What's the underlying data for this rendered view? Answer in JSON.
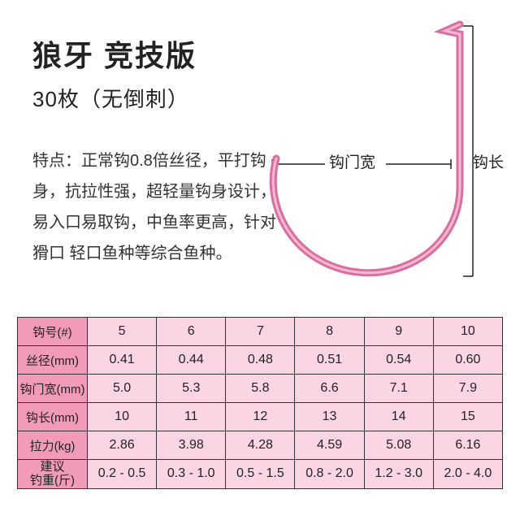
{
  "title": "狼牙 竞技版",
  "subtitle": "30枚（无倒刺）",
  "features_label": "特点：",
  "features_text": "正常钩0.8倍丝径，平打钩身，抗拉性强，超轻量钩身设计，易入口易取钩，中鱼率更高，针对猾口 轻口鱼种等综合鱼种。",
  "diagram": {
    "gate_width_label": "钩门宽",
    "hook_length_label": "钩长",
    "hook_color": "#d96fa0",
    "hook_highlight": "#f4b8d0",
    "bracket_color": "#222222"
  },
  "table": {
    "header_bg": "#f19ab9",
    "cell_bg": "#fbd5e3",
    "border_color": "#333333",
    "row_headers": [
      "钩号(#)",
      "丝径(mm)",
      "钩门宽(mm)",
      "钩长(mm)",
      "拉力(kg)",
      "建议\n钓重(斤)"
    ],
    "columns": [
      "5",
      "6",
      "7",
      "8",
      "9",
      "10"
    ],
    "rows": [
      [
        "0.41",
        "0.44",
        "0.48",
        "0.51",
        "0.54",
        "0.60"
      ],
      [
        "5.0",
        "5.3",
        "5.8",
        "6.6",
        "7.1",
        "7.9"
      ],
      [
        "10",
        "11",
        "12",
        "13",
        "14",
        "15"
      ],
      [
        "2.86",
        "3.98",
        "4.28",
        "4.59",
        "5.08",
        "6.16"
      ],
      [
        "0.2 - 0.5",
        "0.3 - 1.0",
        "0.5 - 1.5",
        "0.8 - 2.0",
        "1.2 - 3.0",
        "2.0 - 4.0"
      ]
    ]
  }
}
